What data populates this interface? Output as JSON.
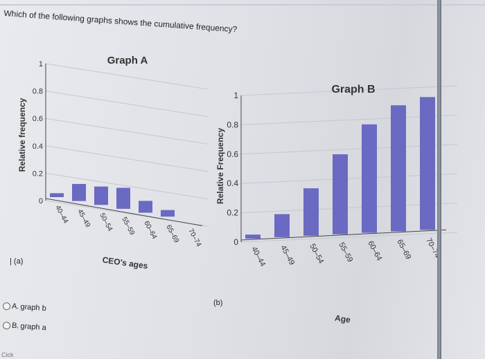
{
  "question": "Which of the following graphs shows the cumulative frequency?",
  "panel_a_label": "(a)",
  "panel_b_label": "(b)",
  "options": [
    {
      "letter": "A.",
      "text": "graph b"
    },
    {
      "letter": "B.",
      "text": "graph a"
    }
  ],
  "footer_text": "Cick",
  "chart_data": [
    {
      "type": "bar",
      "title": "Graph A",
      "xlabel": "CEO's ages",
      "ylabel": "Relative frequency",
      "categories": [
        "40–44",
        "45–49",
        "50–54",
        "55–59",
        "60–64",
        "65–69",
        "70–74"
      ],
      "values": [
        0.03,
        0.13,
        0.14,
        0.16,
        0.09,
        0.05,
        0.0
      ],
      "yticks": [
        "0",
        "0.2",
        "0.4",
        "0.6",
        "0.8",
        "1"
      ],
      "ylim": [
        0,
        1
      ],
      "bar_color": "#6a6ac2"
    },
    {
      "type": "bar",
      "title": "Graph B",
      "xlabel": "Age",
      "ylabel": "Relative Frequency",
      "categories": [
        "40–44",
        "45–49",
        "50–54",
        "55–59",
        "60–64",
        "65–69",
        "70–74"
      ],
      "values": [
        0.03,
        0.17,
        0.35,
        0.59,
        0.8,
        0.93,
        0.98
      ],
      "yticks": [
        "0",
        "0.2",
        "0.4",
        "0.6",
        "0.8",
        "1"
      ],
      "ylim": [
        0,
        1
      ],
      "bar_color": "#6a6ac2"
    }
  ]
}
